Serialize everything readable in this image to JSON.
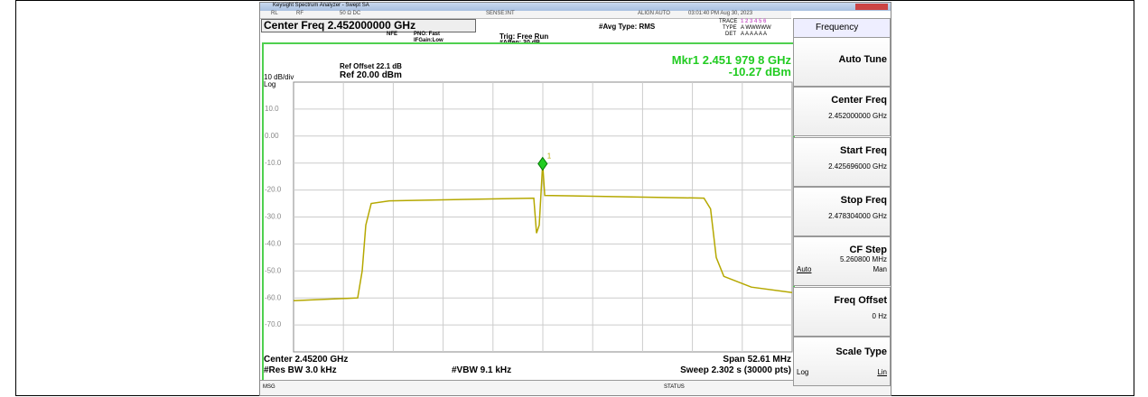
{
  "window": {
    "title": "Keysight Spectrum Analyzer - Swept SA"
  },
  "status_row": [
    "RL",
    "RF",
    "50 Ω  DC",
    "SENSE:INT",
    "ALIGN AUTO",
    "03:01:40 PM Aug 30, 2023"
  ],
  "settings": {
    "center_freq": "Center Freq 2.452000000 GHz",
    "nfe": "NFE",
    "pno": "PNO: Fast",
    "ifgain": "IFGain:Low",
    "trig": "Trig: Free Run",
    "atten": "#Atten: 30 dB",
    "avg": "#Avg Type: RMS",
    "trace_label": "TRACE",
    "trace_nums": "1 2 3 4 5 6",
    "type_label": "TYPE",
    "type_val": "A WWWWW",
    "det_label": "DET",
    "det_val": "A A A A A A"
  },
  "menu": {
    "title": "Frequency",
    "keys": [
      {
        "label": "Auto Tune"
      },
      {
        "label": "Center Freq",
        "value": "2.452000000 GHz"
      },
      {
        "label": "Start Freq",
        "value": "2.425696000 GHz"
      },
      {
        "label": "Stop Freq",
        "value": "2.478304000 GHz"
      },
      {
        "label": "CF Step",
        "value": "5.260800 MHz",
        "options": [
          "Auto",
          "Man"
        ]
      },
      {
        "label": "Freq Offset",
        "value": "0 Hz"
      },
      {
        "label": "Scale Type",
        "options": [
          "Log",
          "Lin"
        ]
      }
    ]
  },
  "plot": {
    "ref_offset": "Ref Offset 22.1 dB",
    "ref": "Ref 20.00 dBm",
    "scale": "10 dB/div",
    "scale_type": "Log",
    "marker_freq": "Mkr1 2.451 979 8 GHz",
    "marker_level": "-10.27 dBm",
    "center": "Center 2.45200 GHz",
    "span": "Span 52.61 MHz",
    "rbw": "#Res BW 3.0 kHz",
    "vbw": "#VBW 9.1 kHz",
    "sweep": "Sweep  2.302 s (30000 pts)",
    "xlim": [
      2.425696,
      2.478304
    ],
    "ylim": [
      -80,
      20
    ],
    "yticks": [
      {
        "value": 10,
        "label": "10.0"
      },
      {
        "value": 0,
        "label": "0.00"
      },
      {
        "value": -10,
        "label": "-10.0"
      },
      {
        "value": -20,
        "label": "-20.0"
      },
      {
        "value": -30,
        "label": "-30.0"
      },
      {
        "value": -40,
        "label": "-40.0"
      },
      {
        "value": -50,
        "label": "-50.0"
      },
      {
        "value": -60,
        "label": "-60.0"
      },
      {
        "value": -70,
        "label": "-70.0"
      }
    ],
    "trace": {
      "color": "#b5a800",
      "x": [
        2.425696,
        2.432463,
        2.432939,
        2.43332,
        2.433892,
        2.435798,
        2.451047,
        2.451333,
        2.451619,
        2.45198,
        2.4522,
        2.469,
        2.4697,
        2.4703,
        2.4711,
        2.474,
        2.478304
      ],
      "values": [
        -61,
        -60,
        -50,
        -33,
        -25,
        -24,
        -23,
        -36,
        -33,
        -10.27,
        -22,
        -23,
        -27,
        -45,
        -52,
        -56,
        -58
      ]
    },
    "marker": {
      "label": "1",
      "x": 2.4519798,
      "y": -10.27,
      "color": "#22cc22"
    }
  },
  "status_bar": {
    "msg": "MSG",
    "status": "STATUS"
  }
}
